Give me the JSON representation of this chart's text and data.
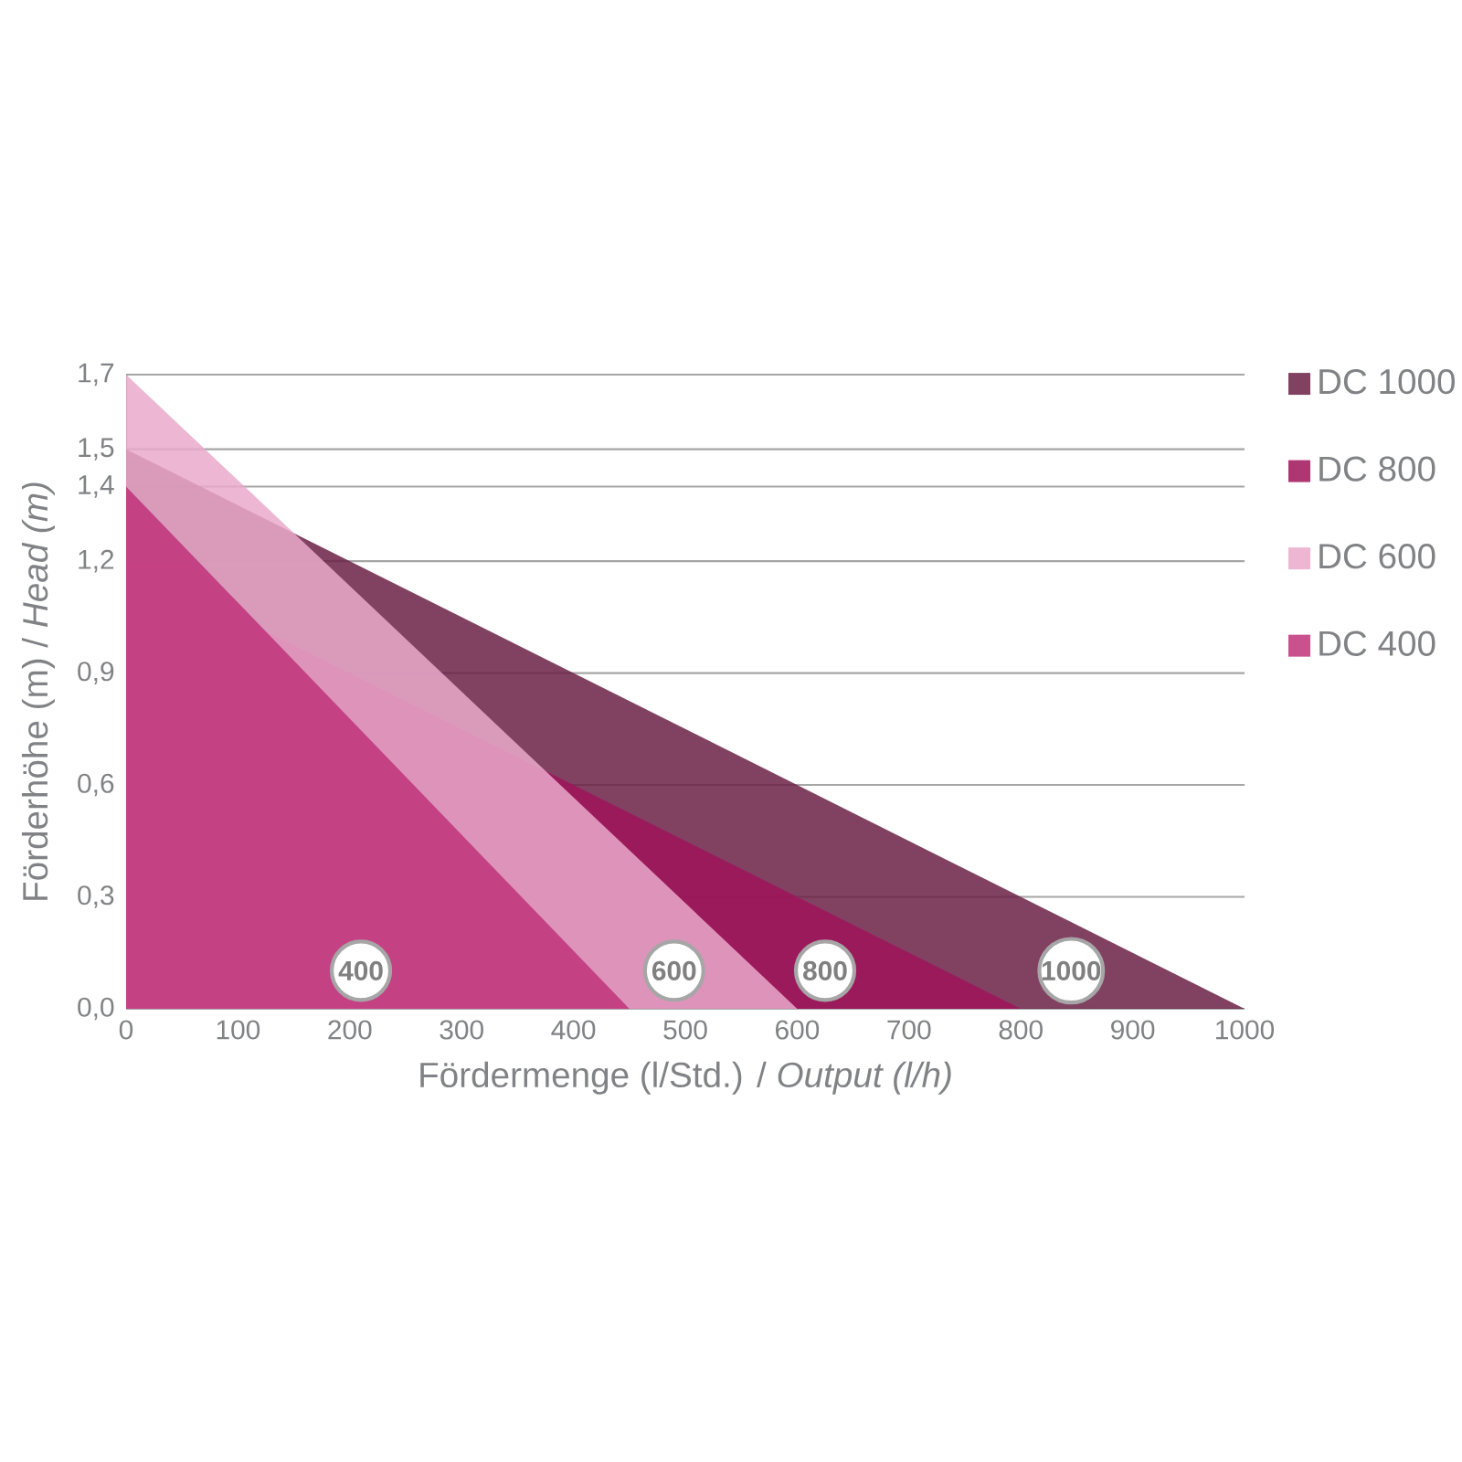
{
  "chart_data": {
    "type": "area",
    "xlabel": "Fördermenge (l/Std.) / *Output (l/h)*",
    "ylabel": "Förderhöhe (m) / *Head (m)*",
    "series": [
      {
        "name": "DC 1000",
        "color": "#6b2146",
        "x": [
          0,
          1000
        ],
        "values": [
          1.5,
          0
        ]
      },
      {
        "name": "DC 800",
        "color": "#a0135a",
        "x": [
          0,
          800
        ],
        "values": [
          1.2,
          0
        ]
      },
      {
        "name": "DC 600",
        "color": "#eaaacb",
        "x": [
          0,
          600
        ],
        "values": [
          1.7,
          0
        ]
      },
      {
        "name": "DC 400",
        "color": "#c0337a",
        "x": [
          0,
          450
        ],
        "values": [
          1.4,
          0
        ]
      }
    ],
    "xlim": [
      0,
      1000
    ],
    "xticks": [
      0,
      100,
      200,
      300,
      400,
      500,
      600,
      700,
      800,
      900,
      1000
    ],
    "ylim": [
      0,
      1.7
    ],
    "yticks": [
      {
        "value": 0,
        "label": "0,0"
      },
      {
        "value": 0.3,
        "label": "0,3"
      },
      {
        "value": 0.6,
        "label": "0,6"
      },
      {
        "value": 0.9,
        "label": "0,9"
      },
      {
        "value": 1.2,
        "label": "1,2"
      },
      {
        "value": 1.4,
        "label": "1,4"
      },
      {
        "value": 1.5,
        "label": "1,5"
      },
      {
        "value": 1.7,
        "label": "1,7"
      }
    ],
    "grid": "y",
    "legend": "right",
    "annotations": [
      "400",
      "600",
      "800",
      "1000"
    ]
  }
}
